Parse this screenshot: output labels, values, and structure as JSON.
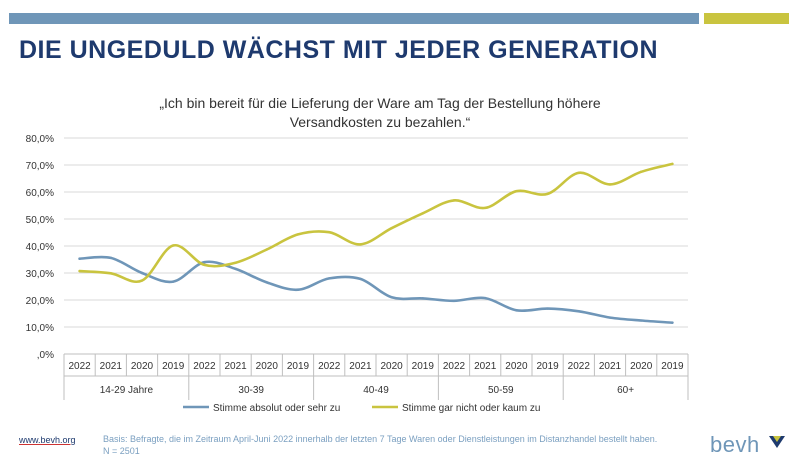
{
  "header": {
    "title": "DIE UNGEDULD WÄCHST MIT JEDER GENERATION",
    "accent_blue": "#6f96b8",
    "accent_yellow": "#c9c43f"
  },
  "chart_data": {
    "type": "line",
    "title_lines": [
      "„Ich bin bereit für die Lieferung der Ware am Tag der Bestellung höhere",
      "Versandkosten zu bezahlen.“"
    ],
    "categories": [
      "2022",
      "2021",
      "2020",
      "2019",
      "2022",
      "2021",
      "2020",
      "2019",
      "2022",
      "2021",
      "2020",
      "2019",
      "2022",
      "2021",
      "2020",
      "2019",
      "2022",
      "2021",
      "2020",
      "2019"
    ],
    "groups": [
      {
        "label": "14-29 Jahre",
        "count": 4
      },
      {
        "label": "30-39",
        "count": 4
      },
      {
        "label": "40-49",
        "count": 4
      },
      {
        "label": "50-59",
        "count": 4
      },
      {
        "label": "60+",
        "count": 4
      }
    ],
    "series": [
      {
        "name": "Stimme absolut oder sehr zu",
        "color": "#6f96b8",
        "values": [
          35.3,
          35.6,
          30.0,
          26.8,
          34.0,
          31.5,
          26.5,
          23.8,
          28.0,
          27.8,
          21.0,
          20.6,
          19.7,
          20.7,
          16.2,
          16.8,
          15.8,
          13.5,
          12.4,
          11.6
        ]
      },
      {
        "name": "Stimme gar nicht oder kaum zu",
        "color": "#c9c43f",
        "values": [
          30.7,
          29.9,
          27.2,
          40.2,
          33.0,
          33.8,
          38.7,
          44.3,
          45.1,
          40.6,
          46.6,
          52.1,
          56.9,
          54.1,
          60.3,
          59.3,
          67.1,
          62.8,
          67.5,
          70.4
        ]
      }
    ],
    "y_ticks": [
      ",0%",
      "10,0%",
      "20,0%",
      "30,0%",
      "40,0%",
      "50,0%",
      "60,0%",
      "70,0%",
      "80,0%"
    ],
    "ylim": [
      0,
      80
    ],
    "grid": true,
    "legend_position": "bottom"
  },
  "footer": {
    "link": "www.bevh.org",
    "note_lines": [
      "Basis: Befragte, die im Zeitraum April-Juni 2022 innerhalb der letzten 7 Tage Waren oder Dienstleistungen im Distanzhandel bestellt haben.",
      "N = 2501"
    ],
    "logo": "bevh"
  }
}
